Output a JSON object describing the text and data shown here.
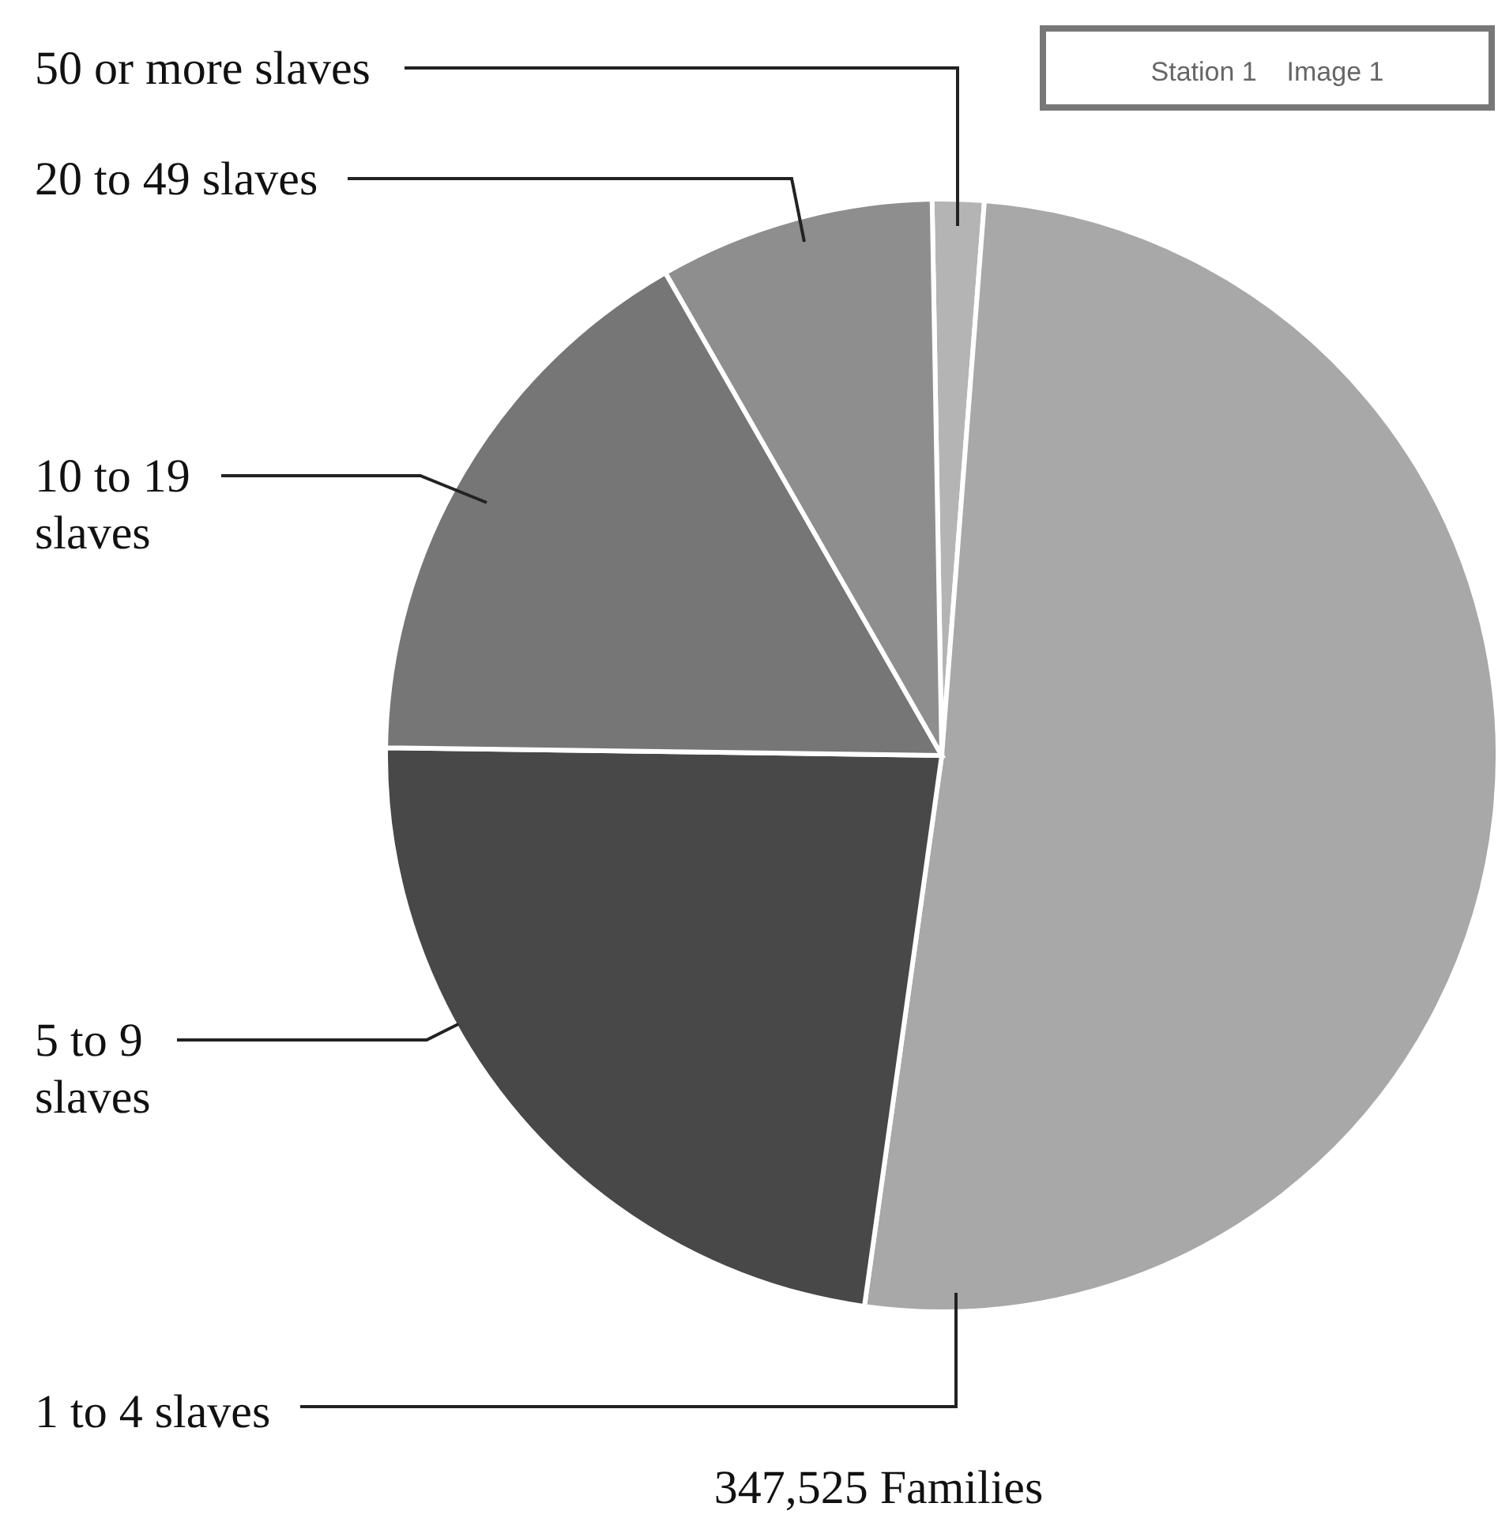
{
  "chart_data": {
    "type": "pie",
    "title": "347,525 Families",
    "categories": [
      "50 or more slaves",
      "1 to 4 slaves",
      "5 to 9 slaves",
      "10 to 19 slaves",
      "20 to 49 slaves"
    ],
    "values": [
      1.5,
      51,
      23,
      16.5,
      8
    ],
    "colors": [
      "#b4b4b4",
      "#a8a8a8",
      "#484848",
      "#767676",
      "#8e8e8e"
    ],
    "annotations": [
      "Station 1    Image 1"
    ]
  }
}
